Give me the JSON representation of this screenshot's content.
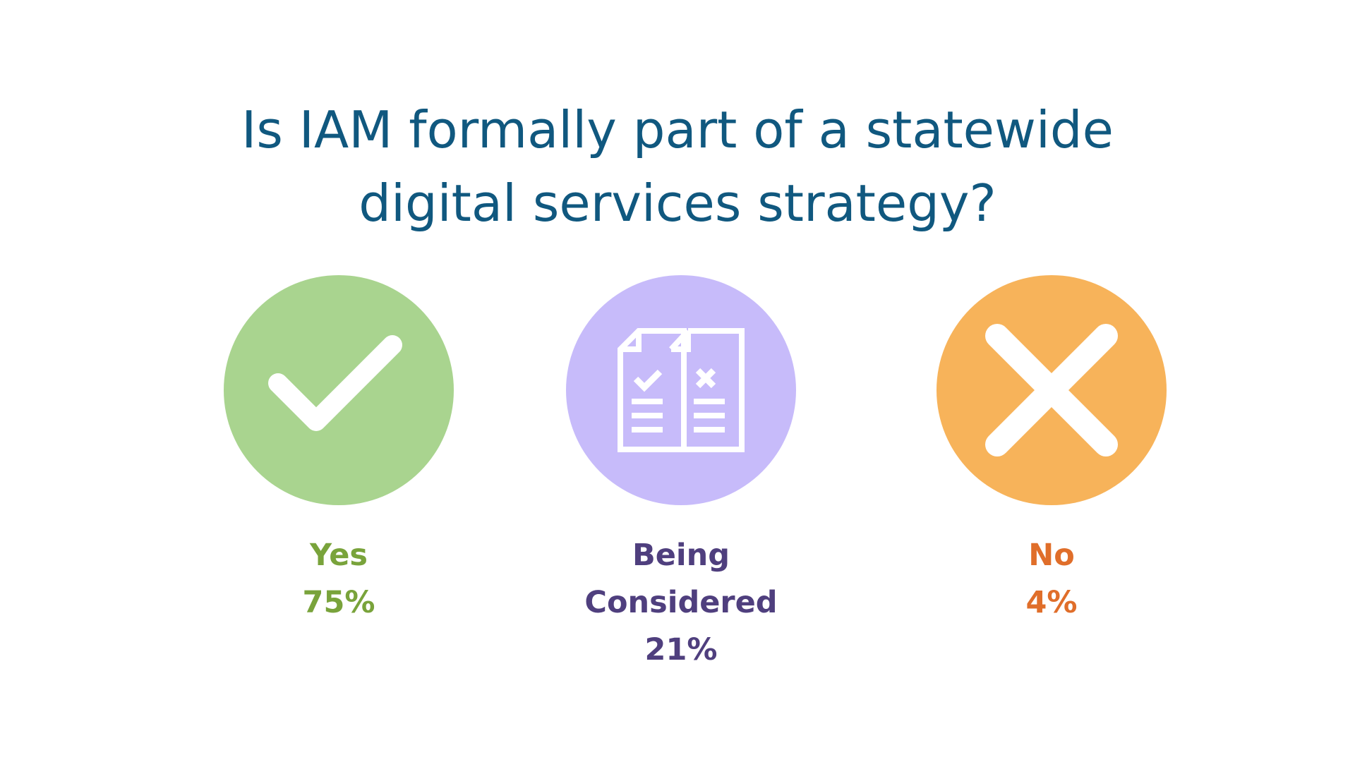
{
  "title_lines": [
    "Is IAM formally part of a statewide",
    "digital services strategy?"
  ],
  "colors": {
    "title": "#10587f",
    "yes_circle": "#a9d48f",
    "yes_text": "#79a33b",
    "considered_circle": "#c7bbfa",
    "considered_text": "#4f3f7e",
    "no_circle": "#f7b35a",
    "no_text": "#e06e2a"
  },
  "chart_data": {
    "type": "table",
    "categories": [
      "Yes",
      "Being Considered",
      "No"
    ],
    "values": [
      75,
      21,
      4
    ],
    "unit": "%",
    "items": [
      {
        "label_lines": [
          "Yes"
        ],
        "value_text": "75%",
        "icon": "checkmark-icon"
      },
      {
        "label_lines": [
          "Being",
          "Considered"
        ],
        "value_text": "21%",
        "icon": "documents-icon"
      },
      {
        "label_lines": [
          "No"
        ],
        "value_text": "4%",
        "icon": "x-icon"
      }
    ]
  }
}
